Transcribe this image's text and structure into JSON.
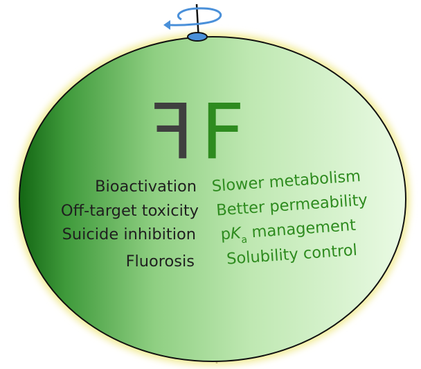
{
  "symbol": {
    "mirrored_letter": "F",
    "letter": "F",
    "mirrored_color": "#3f3f3f",
    "letter_color": "#2e8b1f"
  },
  "left_list": [
    "Bioactivation",
    "Off-target toxicity",
    "Suicide inhibition",
    "Fluorosis"
  ],
  "right_list": {
    "item_1": "Slower metabolism",
    "item_2": "Better permeability",
    "item_3_prefix": "p",
    "item_3_italic": "K",
    "item_3_subscript": "a",
    "item_3_suffix": " management",
    "item_4": "Solubility control"
  },
  "colors": {
    "sphere_dark": "#1a6e1a",
    "sphere_light": "#e4f7dc",
    "halo": "#f2ec9a",
    "arrow": "#4a90d9",
    "axis": "#111111"
  },
  "icons": [
    "rotation-arrow-icon",
    "axis-line"
  ]
}
